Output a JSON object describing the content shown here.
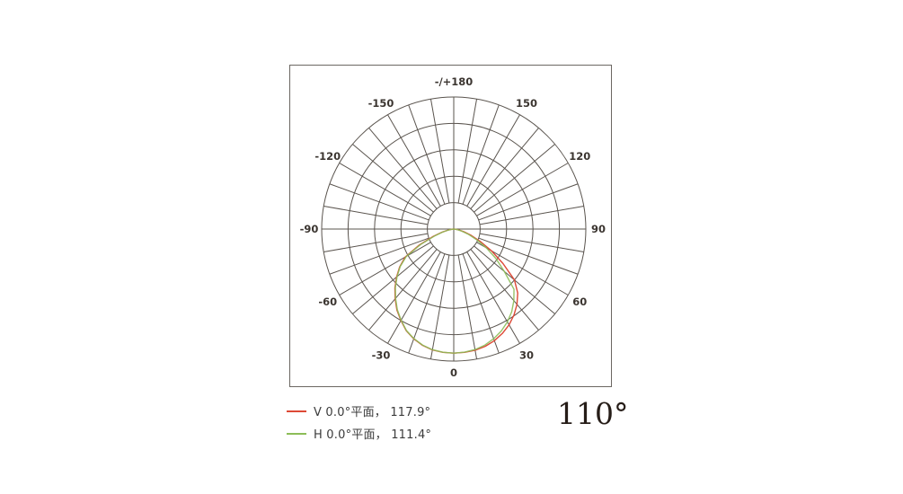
{
  "page": {
    "background": "#ffffff"
  },
  "beam_angle_display": "110°",
  "legend": {
    "items": [
      {
        "label": "V 0.0°平面， 117.9°",
        "color": "#dd4936"
      },
      {
        "label": "H 0.0°平面， 111.4°",
        "color": "#8cbd58"
      }
    ]
  },
  "chart_data": {
    "type": "polar-photometric",
    "title": "",
    "orientation": "0° at bottom, ±90° horizontal, -/+180° at top",
    "rings": 5,
    "spoke_step_deg": 10,
    "label_step_deg": 30,
    "grid_color": "#5a544e",
    "tick_color": "#3b3530",
    "angle_ticks": [
      {
        "angle": 180,
        "label": "-/+180"
      },
      {
        "angle": 150,
        "label": "150"
      },
      {
        "angle": 120,
        "label": "120"
      },
      {
        "angle": 90,
        "label": "90"
      },
      {
        "angle": 60,
        "label": "60"
      },
      {
        "angle": 30,
        "label": "30"
      },
      {
        "angle": 0,
        "label": "0"
      },
      {
        "angle": -30,
        "label": "-30"
      },
      {
        "angle": -60,
        "label": "-60"
      },
      {
        "angle": -90,
        "label": "-90"
      },
      {
        "angle": -120,
        "label": "-120"
      },
      {
        "angle": -150,
        "label": "-150"
      }
    ],
    "radial_axis": {
      "normalized_max": 1.0,
      "curve_peak_relative": 0.94
    },
    "series": [
      {
        "name": "V 0.0°平面",
        "beam_angle": "117.9°",
        "color": "#dd4936",
        "points": [
          [
            -90,
            0
          ],
          [
            -85,
            0.012
          ],
          [
            -80,
            0.04
          ],
          [
            -75,
            0.09
          ],
          [
            -70,
            0.17
          ],
          [
            -65,
            0.29
          ],
          [
            -60,
            0.425
          ],
          [
            -55,
            0.5
          ],
          [
            -50,
            0.565
          ],
          [
            -45,
            0.63
          ],
          [
            -40,
            0.69
          ],
          [
            -35,
            0.75
          ],
          [
            -30,
            0.8
          ],
          [
            -25,
            0.85
          ],
          [
            -20,
            0.885
          ],
          [
            -15,
            0.912
          ],
          [
            -10,
            0.93
          ],
          [
            -5,
            0.938
          ],
          [
            0,
            0.94
          ],
          [
            5,
            0.938
          ],
          [
            10,
            0.932
          ],
          [
            15,
            0.92
          ],
          [
            20,
            0.9
          ],
          [
            25,
            0.872
          ],
          [
            30,
            0.838
          ],
          [
            35,
            0.795
          ],
          [
            40,
            0.745
          ],
          [
            45,
            0.685
          ],
          [
            50,
            0.6
          ],
          [
            55,
            0.455
          ],
          [
            60,
            0.33
          ],
          [
            65,
            0.22
          ],
          [
            70,
            0.14
          ],
          [
            75,
            0.08
          ],
          [
            80,
            0.04
          ],
          [
            85,
            0.012
          ],
          [
            90,
            0
          ]
        ]
      },
      {
        "name": "H 0.0°平面",
        "beam_angle": "111.4°",
        "color": "#8cbd58",
        "points": [
          [
            -90,
            0
          ],
          [
            -85,
            0.01
          ],
          [
            -80,
            0.035
          ],
          [
            -75,
            0.085
          ],
          [
            -70,
            0.155
          ],
          [
            -65,
            0.275
          ],
          [
            -60,
            0.415
          ],
          [
            -55,
            0.495
          ],
          [
            -50,
            0.56
          ],
          [
            -45,
            0.625
          ],
          [
            -40,
            0.685
          ],
          [
            -35,
            0.745
          ],
          [
            -30,
            0.797
          ],
          [
            -25,
            0.848
          ],
          [
            -20,
            0.883
          ],
          [
            -15,
            0.91
          ],
          [
            -10,
            0.928
          ],
          [
            -5,
            0.937
          ],
          [
            0,
            0.94
          ],
          [
            5,
            0.936
          ],
          [
            10,
            0.927
          ],
          [
            15,
            0.91
          ],
          [
            20,
            0.884
          ],
          [
            25,
            0.852
          ],
          [
            30,
            0.812
          ],
          [
            35,
            0.765
          ],
          [
            40,
            0.708
          ],
          [
            45,
            0.645
          ],
          [
            50,
            0.5
          ],
          [
            55,
            0.39
          ],
          [
            60,
            0.285
          ],
          [
            65,
            0.19
          ],
          [
            70,
            0.12
          ],
          [
            75,
            0.065
          ],
          [
            80,
            0.03
          ],
          [
            85,
            0.01
          ],
          [
            90,
            0
          ]
        ]
      }
    ]
  }
}
